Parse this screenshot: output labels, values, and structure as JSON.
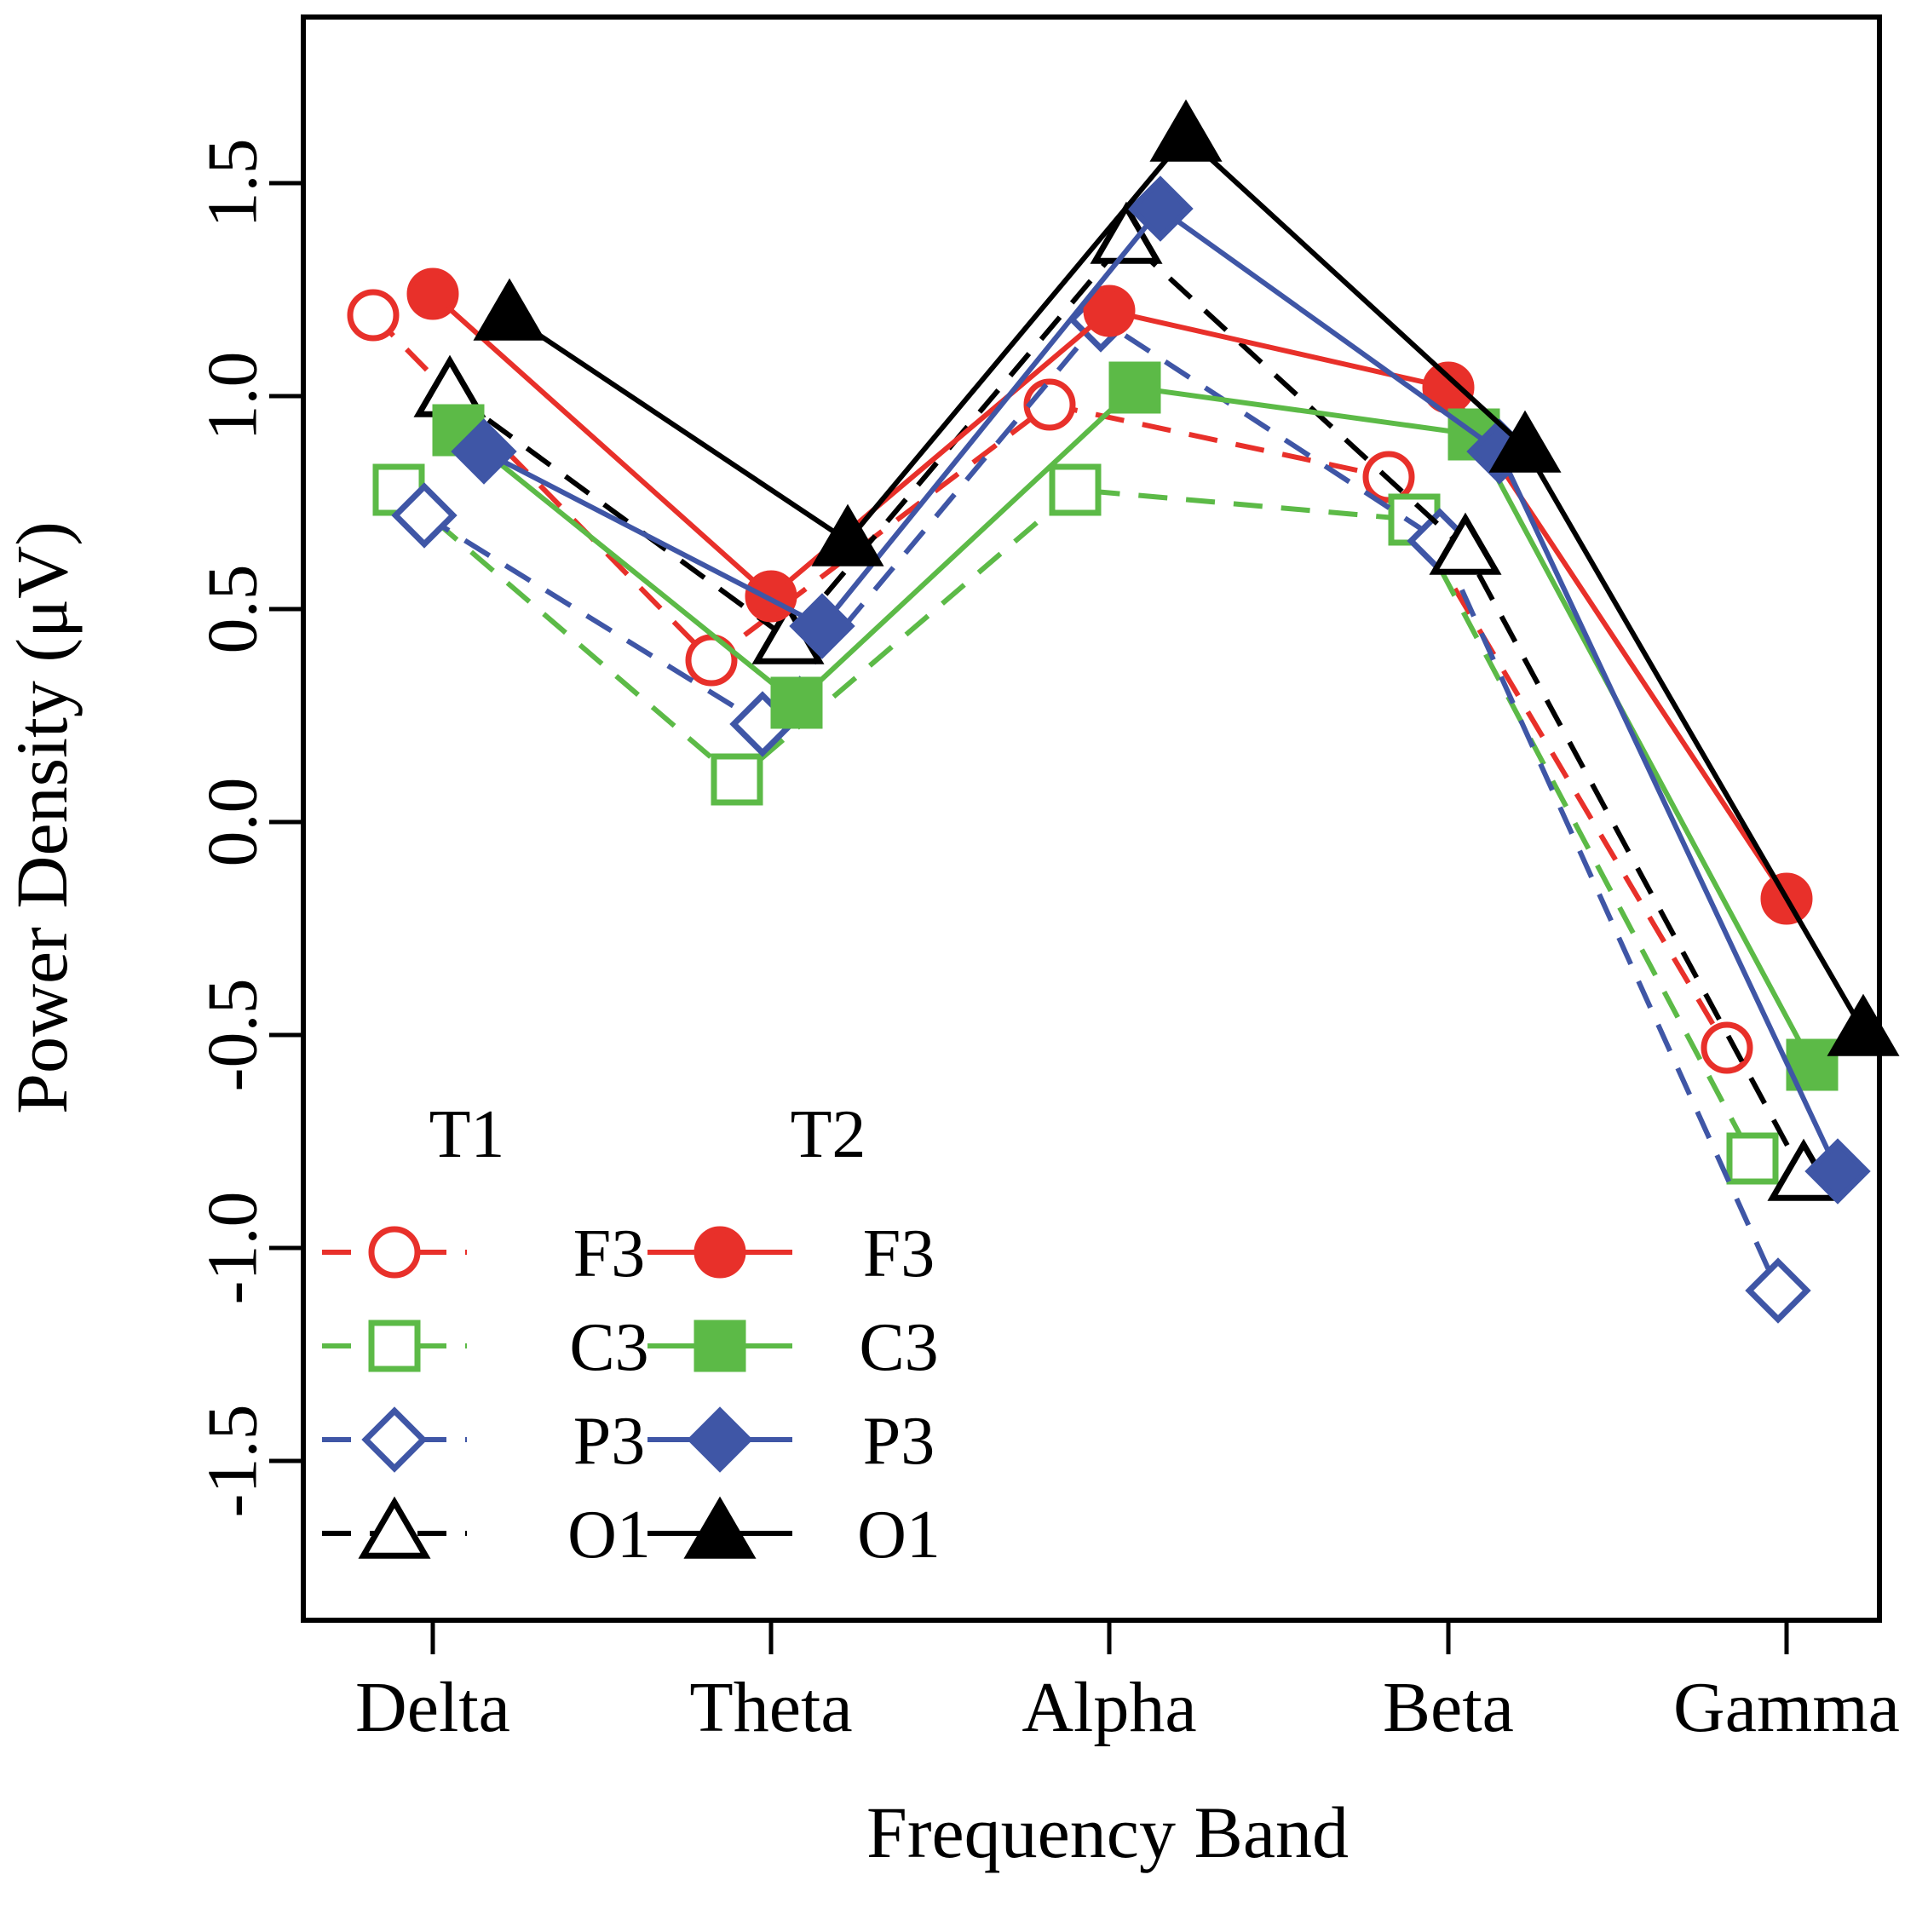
{
  "chart_data": {
    "type": "line",
    "title": "",
    "xlabel": "Frequency Band",
    "ylabel": "Power Density (μV)",
    "categories": [
      "Delta",
      "Theta",
      "Alpha",
      "Beta",
      "Gamma"
    ],
    "ylim": [
      -1.8,
      1.9
    ],
    "yticks": [
      -1.5,
      -1.0,
      -0.5,
      0.0,
      0.5,
      1.0,
      1.5
    ],
    "ytick_labels": [
      "-1.5",
      "-1.0",
      "-0.5",
      "0.0",
      "0.5",
      "1.0",
      "1.5"
    ],
    "legend": {
      "headers": [
        "T1",
        "T2"
      ],
      "placement": "bottom-left"
    },
    "series": [
      {
        "name": "F3",
        "group": "T1",
        "color": "#e8302a",
        "dashed": true,
        "marker": "circle",
        "filled": false,
        "values": [
          1.19,
          0.38,
          0.98,
          0.81,
          -0.53
        ]
      },
      {
        "name": "C3",
        "group": "T1",
        "color": "#5cba47",
        "dashed": true,
        "marker": "square",
        "filled": false,
        "values": [
          0.78,
          0.1,
          0.78,
          0.71,
          -0.79
        ]
      },
      {
        "name": "P3",
        "group": "T1",
        "color": "#3f56a6",
        "dashed": true,
        "marker": "diamond",
        "filled": false,
        "values": [
          0.72,
          0.23,
          1.18,
          0.66,
          -1.1
        ]
      },
      {
        "name": "O1",
        "group": "T1",
        "color": "#000000",
        "dashed": true,
        "marker": "triangle",
        "filled": false,
        "values": [
          1.01,
          0.43,
          1.37,
          0.64,
          -0.83
        ]
      },
      {
        "name": "F3",
        "group": "T2",
        "color": "#e8302a",
        "dashed": false,
        "marker": "circle",
        "filled": true,
        "values": [
          1.24,
          0.53,
          1.2,
          1.02,
          -0.18
        ]
      },
      {
        "name": "C3",
        "group": "T2",
        "color": "#5cba47",
        "dashed": false,
        "marker": "square",
        "filled": true,
        "values": [
          0.92,
          0.28,
          1.02,
          0.91,
          -0.57
        ]
      },
      {
        "name": "P3",
        "group": "T2",
        "color": "#3f56a6",
        "dashed": false,
        "marker": "diamond",
        "filled": true,
        "values": [
          0.87,
          0.46,
          1.44,
          0.87,
          -0.82
        ]
      },
      {
        "name": "O1",
        "group": "T2",
        "color": "#000000",
        "dashed": false,
        "marker": "triangle",
        "filled": true,
        "values": [
          1.19,
          0.66,
          1.61,
          0.88,
          -0.49
        ]
      }
    ]
  }
}
